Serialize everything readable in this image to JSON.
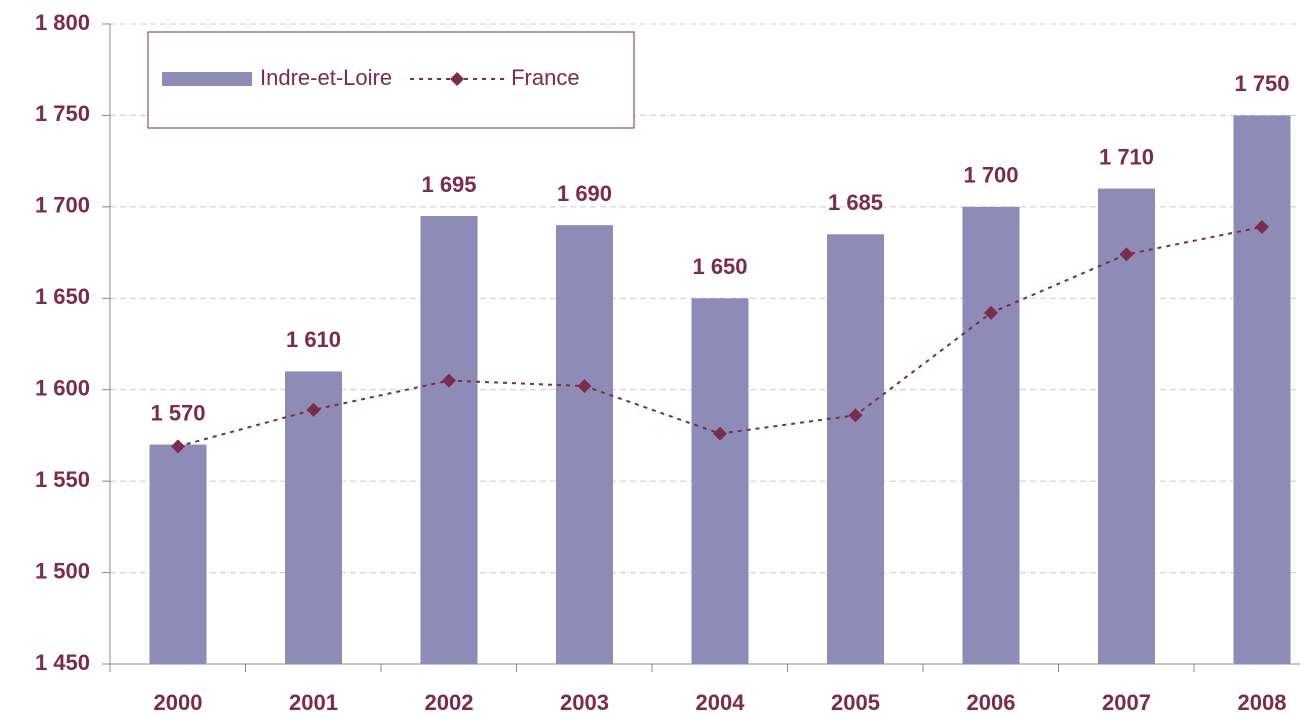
{
  "chart_data": {
    "type": "bar_line",
    "categories": [
      "2000",
      "2001",
      "2002",
      "2003",
      "2004",
      "2005",
      "2006",
      "2007",
      "2008"
    ],
    "series": [
      {
        "name": "Indre-et-Loire",
        "type": "bar",
        "color": "#8e8cb6",
        "values": [
          1570,
          1610,
          1695,
          1690,
          1650,
          1685,
          1700,
          1710,
          1750
        ],
        "value_labels": [
          "1 570",
          "1 610",
          "1 695",
          "1 690",
          "1 650",
          "1 685",
          "1 700",
          "1 710",
          "1 750"
        ]
      },
      {
        "name": "France",
        "type": "line",
        "color": "#7b2c4a",
        "values": [
          1569,
          1589,
          1605,
          1602,
          1576,
          1586,
          1642,
          1674,
          1689
        ]
      }
    ],
    "ylim": [
      1450,
      1800
    ],
    "yticks": [
      {
        "value": 1450,
        "label": "1 450"
      },
      {
        "value": 1500,
        "label": "1 500"
      },
      {
        "value": 1550,
        "label": "1 550"
      },
      {
        "value": 1600,
        "label": "1 600"
      },
      {
        "value": 1650,
        "label": "1 650"
      },
      {
        "value": 1700,
        "label": "1 700"
      },
      {
        "value": 1750,
        "label": "1 750"
      },
      {
        "value": 1800,
        "label": "1 800"
      }
    ],
    "grid": true,
    "legend": "top-left"
  }
}
